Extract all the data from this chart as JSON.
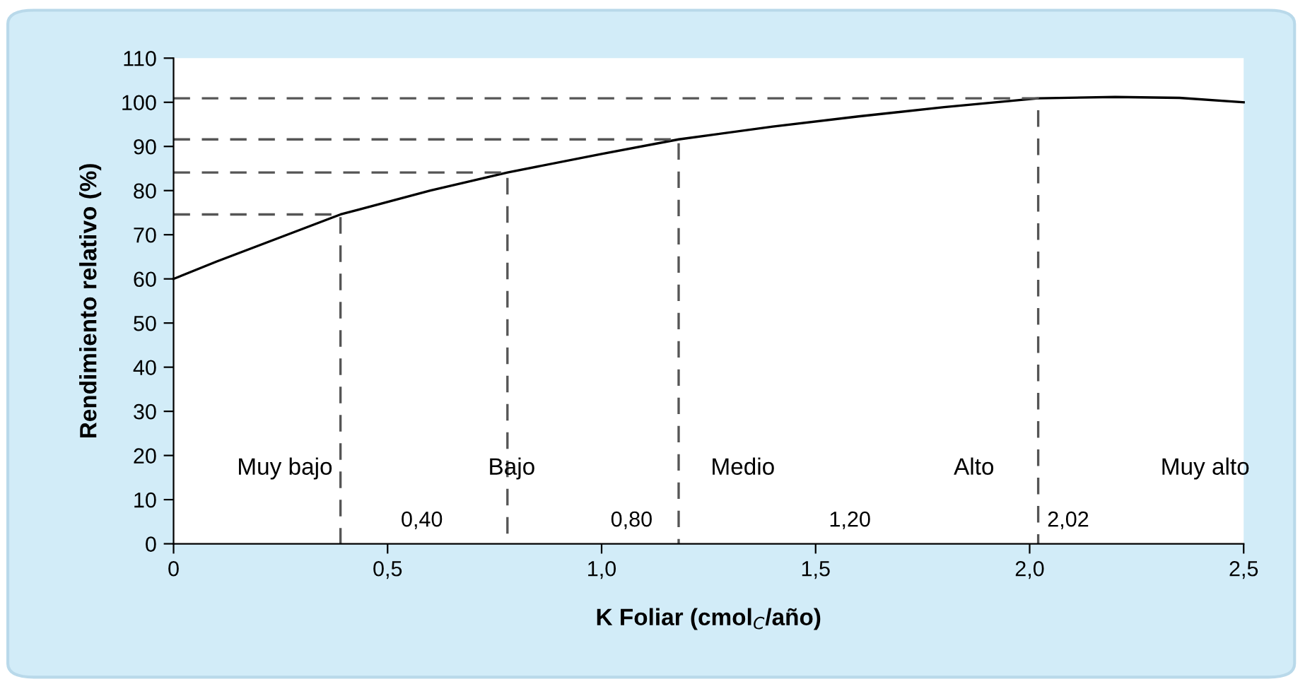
{
  "chart_data": {
    "type": "line",
    "xlabel": "K Foliar (cmol$_{C}$/año)",
    "ylabel": "Rendimiento relativo (%)",
    "xlim": [
      0,
      2.5
    ],
    "xticks": [
      {
        "value": 0,
        "label": "0"
      },
      {
        "value": 0.5,
        "label": "0,5"
      },
      {
        "value": 1.0,
        "label": "1,0"
      },
      {
        "value": 1.5,
        "label": "1,5"
      },
      {
        "value": 2.0,
        "label": "2,0"
      },
      {
        "value": 2.5,
        "label": "2,5"
      }
    ],
    "ylim": [
      0,
      110
    ],
    "yticks": [
      0,
      10,
      20,
      30,
      40,
      50,
      60,
      70,
      80,
      90,
      100,
      110
    ],
    "marker": "none",
    "series": [
      {
        "color": "#000000",
        "line_style": "solid",
        "x": [
          0,
          0.1,
          0.2,
          0.39,
          0.6,
          0.78,
          1.0,
          1.18,
          1.4,
          1.6,
          1.8,
          2.02,
          2.2,
          2.35,
          2.5
        ],
        "values": [
          60,
          63.9,
          67.6,
          74.6,
          80,
          84.1,
          88.3,
          91.6,
          94.5,
          96.8,
          98.9,
          100.9,
          101.2,
          101.0,
          100.0
        ]
      },
      {
        "color": "#555555",
        "line_style": "dashed",
        "x": [
          0,
          0.39,
          0.39
        ],
        "values": [
          74.6,
          74.6,
          0
        ]
      },
      {
        "color": "#555555",
        "line_style": "dashed",
        "x": [
          0,
          0.78,
          0.78
        ],
        "values": [
          84.1,
          84.1,
          0
        ]
      },
      {
        "color": "#555555",
        "line_style": "dashed",
        "x": [
          0,
          1.18,
          1.18
        ],
        "values": [
          91.6,
          91.6,
          0
        ]
      },
      {
        "color": "#555555",
        "line_style": "dashed",
        "x": [
          0,
          2.02,
          2.02
        ],
        "values": [
          100.9,
          100.9,
          0
        ]
      }
    ],
    "annotations": [
      "Muy bajo",
      "Bajo",
      "Medio",
      "Alto",
      "Muy alto",
      "0,40",
      "0,80",
      "1,20",
      "2,02"
    ]
  }
}
